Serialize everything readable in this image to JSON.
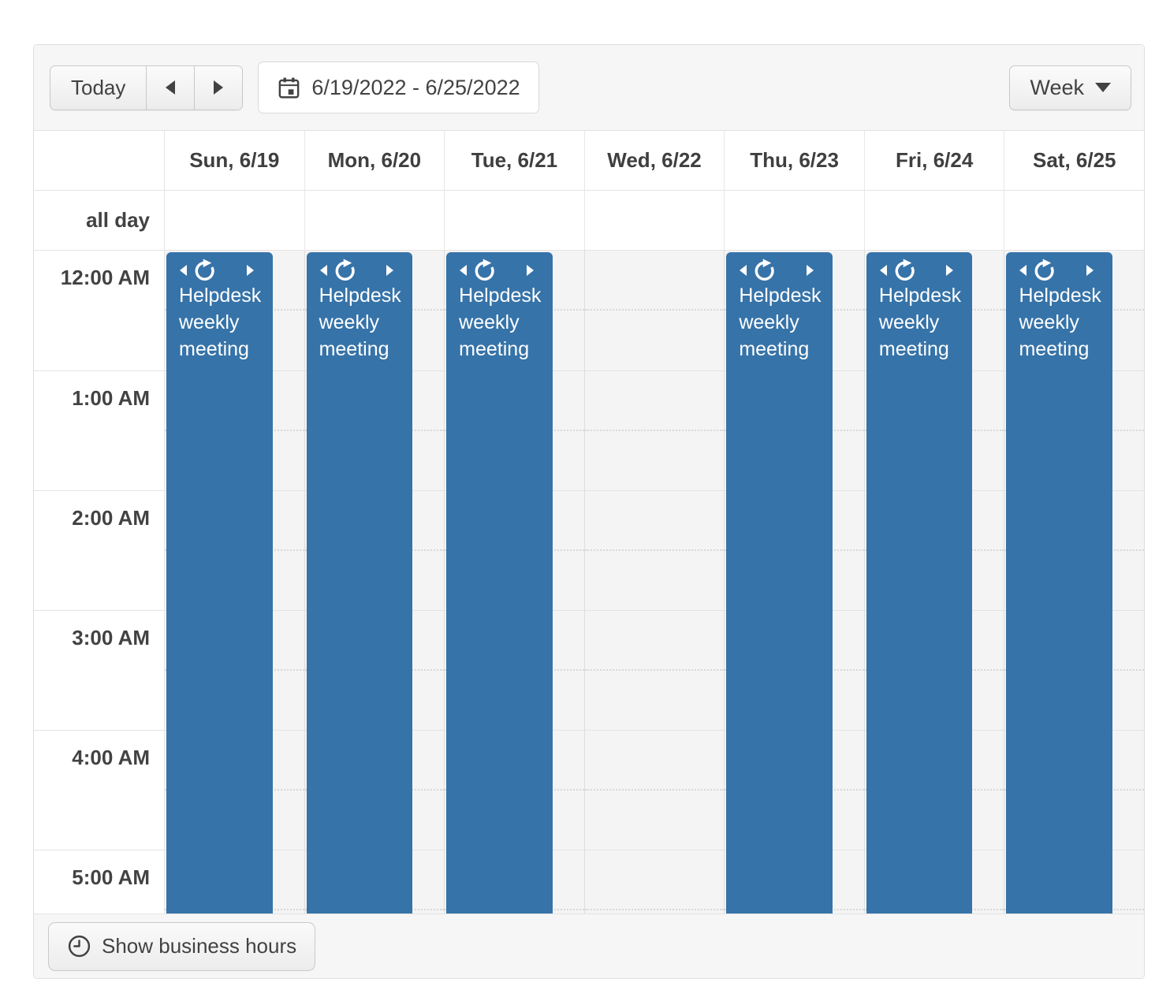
{
  "toolbar": {
    "today_label": "Today",
    "date_range": "6/19/2022 - 6/25/2022",
    "view_label": "Week"
  },
  "header": {
    "days": [
      {
        "key": "sun",
        "label": "Sun, 6/19",
        "has_event": true
      },
      {
        "key": "mon",
        "label": "Mon, 6/20",
        "has_event": true
      },
      {
        "key": "tue",
        "label": "Tue, 6/21",
        "has_event": true
      },
      {
        "key": "wed",
        "label": "Wed, 6/22",
        "has_event": false
      },
      {
        "key": "thu",
        "label": "Thu, 6/23",
        "has_event": true
      },
      {
        "key": "fri",
        "label": "Fri, 6/24",
        "has_event": true
      },
      {
        "key": "sat",
        "label": "Sat, 6/25",
        "has_event": true
      }
    ]
  },
  "all_day_label": "all day",
  "time_labels": [
    "12:00 AM",
    "1:00 AM",
    "2:00 AM",
    "3:00 AM",
    "4:00 AM",
    "5:00 AM"
  ],
  "event": {
    "title": "Helpdesk weekly meeting",
    "recurring": true
  },
  "footer": {
    "business_hours_label": "Show business hours"
  },
  "colors": {
    "event_bg": "#3673a8",
    "chrome_bg": "#f6f6f6",
    "grid_bg": "#f4f4f4",
    "text": "#424242"
  }
}
